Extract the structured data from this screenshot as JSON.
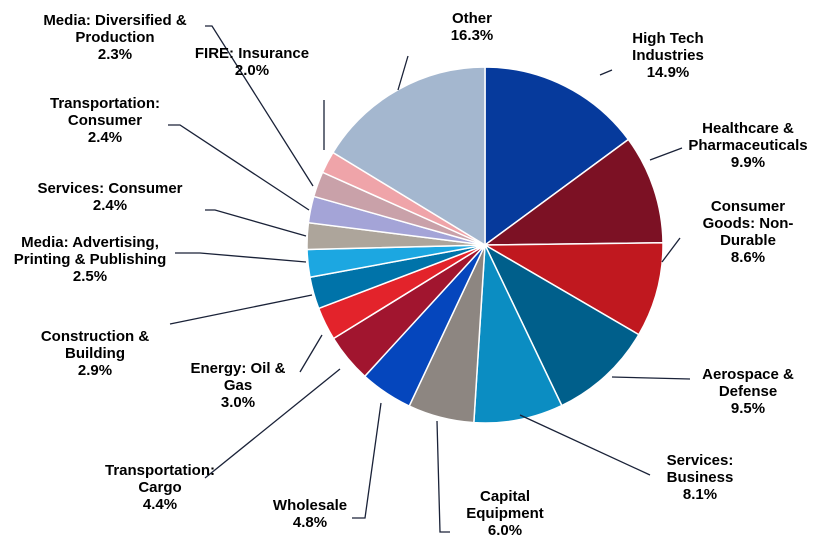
{
  "chart_data": {
    "type": "pie",
    "categories": [
      "High Tech Industries",
      "Healthcare & Pharmaceuticals",
      "Consumer Goods: Non-Durable",
      "Aerospace & Defense",
      "Services: Business",
      "Capital Equipment",
      "Wholesale",
      "Transportation: Cargo",
      "Energy: Oil & Gas",
      "Construction & Building",
      "Media: Advertising, Printing & Publishing",
      "Services: Consumer",
      "Transportation: Consumer",
      "Media: Diversified & Production",
      "FIRE: Insurance",
      "Other"
    ],
    "values": [
      14.9,
      9.9,
      8.6,
      9.5,
      8.1,
      6.0,
      4.8,
      4.4,
      3.0,
      2.9,
      2.5,
      2.4,
      2.4,
      2.3,
      2.0,
      16.3
    ],
    "value_labels": [
      "14.9%",
      "9.9%",
      "8.6%",
      "9.5%",
      "8.1%",
      "6.0%",
      "4.8%",
      "4.4%",
      "3.0%",
      "2.9%",
      "2.5%",
      "2.4%",
      "2.4%",
      "2.3%",
      "2.0%",
      "16.3%"
    ],
    "colors": [
      "#063a9c",
      "#7c1124",
      "#c0181f",
      "#005f8b",
      "#0b8dc2",
      "#8d8681",
      "#0546bd",
      "#a1152f",
      "#e3232b",
      "#0073a9",
      "#1ca7e1",
      "#ada59b",
      "#a4a4d7",
      "#c9a1a9",
      "#efa4a9",
      "#a4b7cf"
    ]
  }
}
